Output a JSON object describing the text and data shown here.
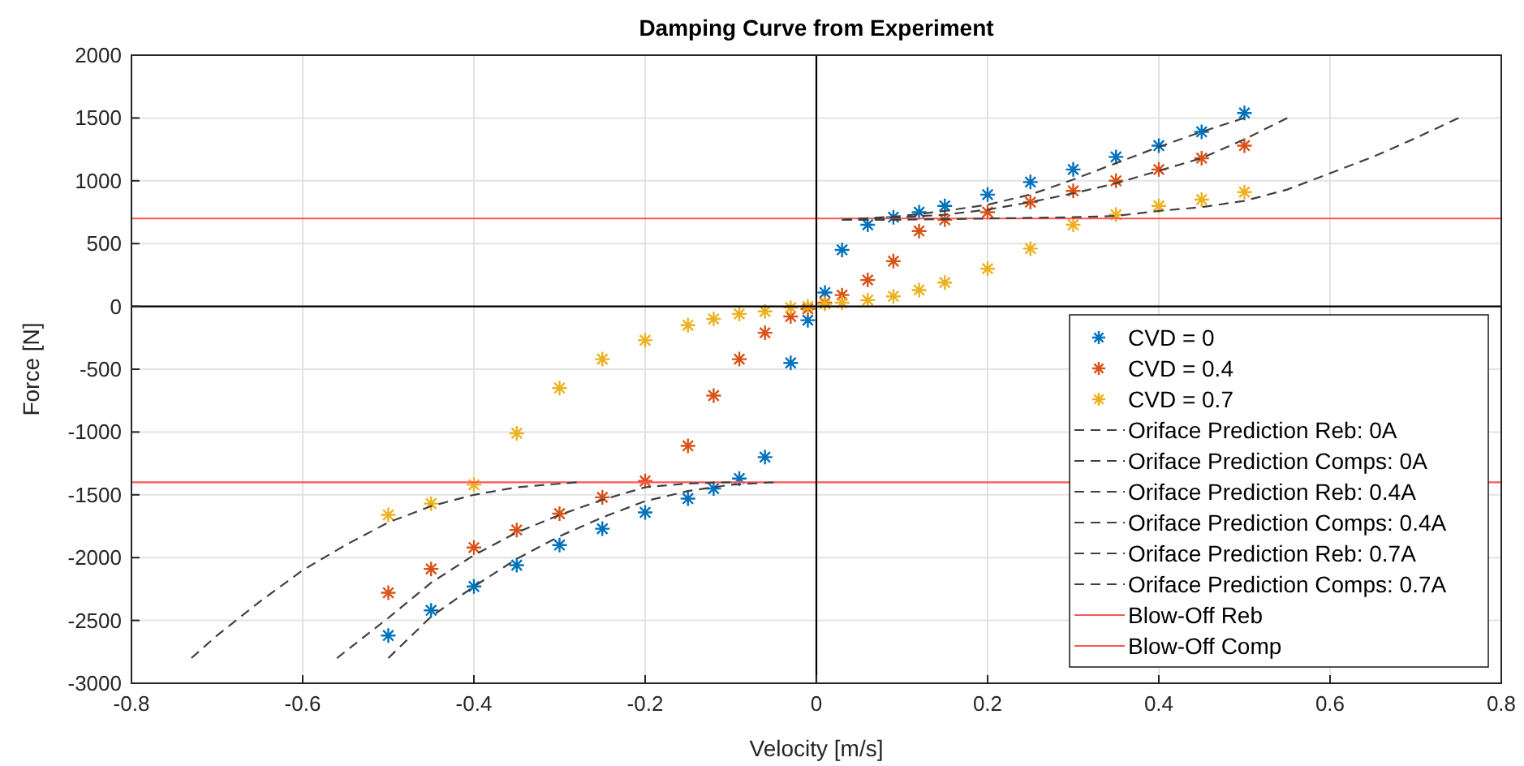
{
  "chart_data": {
    "type": "scatter",
    "title": "Damping Curve from Experiment",
    "xlabel": "Velocity [m/s]",
    "ylabel": "Force [N]",
    "xlim": [
      -0.8,
      0.8
    ],
    "xticks": [
      -0.8,
      -0.6,
      -0.4,
      -0.2,
      0,
      0.2,
      0.4,
      0.6,
      0.8
    ],
    "ylim": [
      -3000,
      2000
    ],
    "yticks": [
      -3000,
      -2500,
      -2000,
      -1500,
      -1000,
      -500,
      0,
      500,
      1000,
      1500,
      2000
    ],
    "grid": true,
    "legend": "bottom right",
    "marker": "cross",
    "series": [
      {
        "name": "CVD = 0",
        "color": "#0072bd",
        "x": [
          -0.5,
          -0.45,
          -0.4,
          -0.35,
          -0.3,
          -0.25,
          -0.2,
          -0.15,
          -0.12,
          -0.09,
          -0.06,
          -0.03,
          -0.01,
          0.01,
          0.03,
          0.06,
          0.09,
          0.12,
          0.15,
          0.2,
          0.25,
          0.3,
          0.35,
          0.4,
          0.45,
          0.5
        ],
        "values": [
          -2620,
          -2420,
          -2230,
          -2060,
          -1900,
          -1770,
          -1640,
          -1530,
          -1450,
          -1370,
          -1200,
          -450,
          -110,
          110,
          450,
          650,
          710,
          750,
          800,
          890,
          990,
          1090,
          1190,
          1280,
          1390,
          1540
        ]
      },
      {
        "name": "CVD = 0.4",
        "color": "#d95319",
        "x": [
          -0.5,
          -0.45,
          -0.4,
          -0.35,
          -0.3,
          -0.25,
          -0.2,
          -0.15,
          -0.12,
          -0.09,
          -0.06,
          -0.03,
          -0.01,
          0.01,
          0.03,
          0.06,
          0.09,
          0.12,
          0.15,
          0.2,
          0.25,
          0.3,
          0.35,
          0.4,
          0.45,
          0.5
        ],
        "values": [
          -2280,
          -2090,
          -1920,
          -1780,
          -1650,
          -1520,
          -1390,
          -1110,
          -710,
          -420,
          -210,
          -80,
          -20,
          30,
          90,
          210,
          360,
          600,
          690,
          750,
          830,
          920,
          1000,
          1090,
          1180,
          1280
        ]
      },
      {
        "name": "CVD = 0.7",
        "color": "#edb120",
        "x": [
          -0.5,
          -0.45,
          -0.4,
          -0.35,
          -0.3,
          -0.25,
          -0.2,
          -0.15,
          -0.12,
          -0.09,
          -0.06,
          -0.03,
          -0.01,
          0.01,
          0.03,
          0.06,
          0.09,
          0.12,
          0.15,
          0.2,
          0.25,
          0.3,
          0.35,
          0.4,
          0.45,
          0.5
        ],
        "values": [
          -1660,
          -1570,
          -1420,
          -1010,
          -650,
          -420,
          -270,
          -150,
          -100,
          -60,
          -40,
          -10,
          0,
          20,
          30,
          50,
          80,
          130,
          190,
          300,
          460,
          650,
          730,
          800,
          850,
          910
        ]
      },
      {
        "type": "line",
        "marker": "none",
        "line_style": "dashed",
        "name": "Oriface Prediction Reb: 0A",
        "color": "#404040",
        "x": [
          0.03,
          0.1,
          0.15,
          0.2,
          0.25,
          0.3,
          0.35,
          0.4,
          0.45,
          0.5
        ],
        "values": [
          690,
          720,
          760,
          810,
          890,
          1010,
          1140,
          1270,
          1390,
          1500
        ]
      },
      {
        "type": "line",
        "marker": "none",
        "line_style": "dashed",
        "name": "Oriface Prediction Comps: 0A",
        "color": "#404040",
        "x": [
          -0.5,
          -0.45,
          -0.4,
          -0.35,
          -0.3,
          -0.25,
          -0.2,
          -0.15,
          -0.1,
          -0.05
        ],
        "values": [
          -2800,
          -2470,
          -2230,
          -2010,
          -1830,
          -1680,
          -1550,
          -1470,
          -1420,
          -1400
        ]
      },
      {
        "type": "line",
        "marker": "none",
        "line_style": "dashed",
        "name": "Oriface Prediction Reb: 0.4A",
        "color": "#404040",
        "x": [
          0.03,
          0.1,
          0.15,
          0.2,
          0.25,
          0.3,
          0.35,
          0.4,
          0.45,
          0.5,
          0.55
        ],
        "values": [
          690,
          710,
          730,
          770,
          830,
          900,
          980,
          1080,
          1180,
          1330,
          1500
        ]
      },
      {
        "type": "line",
        "marker": "none",
        "line_style": "dashed",
        "name": "Oriface Prediction Comps: 0.4A",
        "color": "#404040",
        "x": [
          -0.56,
          -0.5,
          -0.45,
          -0.4,
          -0.35,
          -0.3,
          -0.25,
          -0.2,
          -0.15,
          -0.1
        ],
        "values": [
          -2800,
          -2480,
          -2200,
          -1980,
          -1800,
          -1660,
          -1540,
          -1440,
          -1410,
          -1400
        ]
      },
      {
        "type": "line",
        "marker": "none",
        "line_style": "dashed",
        "name": "Oriface Prediction Reb: 0.7A",
        "color": "#404040",
        "x": [
          0.03,
          0.1,
          0.2,
          0.3,
          0.35,
          0.4,
          0.45,
          0.5,
          0.55,
          0.6,
          0.65,
          0.7,
          0.75
        ],
        "values": [
          690,
          690,
          700,
          710,
          720,
          760,
          790,
          840,
          930,
          1060,
          1190,
          1340,
          1500
        ]
      },
      {
        "type": "line",
        "marker": "none",
        "line_style": "dashed",
        "name": "Oriface Prediction Comps: 0.7A",
        "color": "#404040",
        "x": [
          -0.73,
          -0.7,
          -0.65,
          -0.6,
          -0.55,
          -0.5,
          -0.45,
          -0.4,
          -0.35,
          -0.28
        ],
        "values": [
          -2800,
          -2620,
          -2350,
          -2100,
          -1900,
          -1720,
          -1590,
          -1500,
          -1440,
          -1400
        ]
      },
      {
        "type": "line",
        "marker": "none",
        "line_style": "solid",
        "name": "Blow-Off Reb",
        "color": "#ff5555",
        "x": [
          -0.8,
          0.8
        ],
        "values": [
          700,
          700
        ]
      },
      {
        "type": "line",
        "marker": "none",
        "line_style": "solid",
        "name": "Blow-Off Comp",
        "color": "#ff5555",
        "x": [
          -0.8,
          0.8
        ],
        "values": [
          -1400,
          -1400
        ]
      },
      {
        "type": "line",
        "marker": "none",
        "line_style": "solid",
        "color": "#000000",
        "x": [
          -0.8,
          0.8
        ],
        "values": [
          0,
          0
        ]
      },
      {
        "type": "line",
        "marker": "none",
        "line_style": "solid",
        "color": "#000000",
        "x": [
          0,
          0
        ],
        "values": [
          -3000,
          2000
        ]
      }
    ]
  }
}
